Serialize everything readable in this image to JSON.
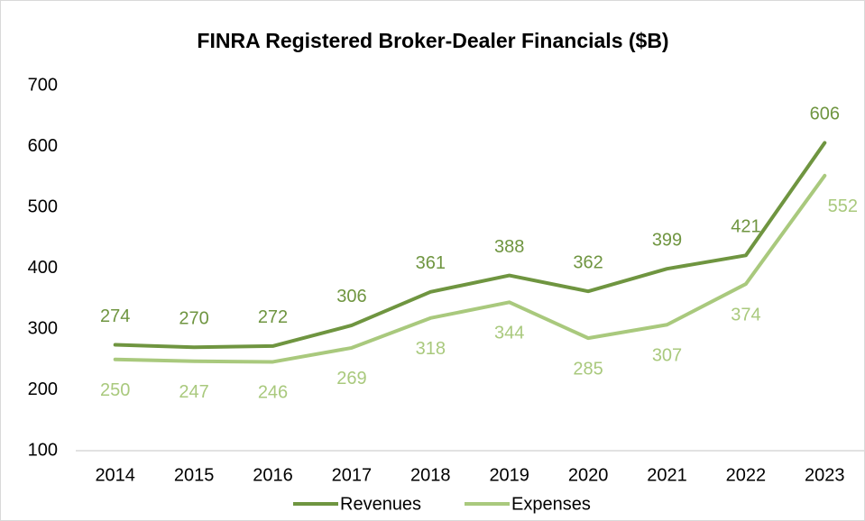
{
  "chart_data": {
    "type": "line",
    "title": "FINRA Registered Broker-Dealer Financials ($B)",
    "categories": [
      "2014",
      "2015",
      "2016",
      "2017",
      "2018",
      "2019",
      "2020",
      "2021",
      "2022",
      "2023"
    ],
    "series": [
      {
        "name": "Revenues",
        "color": "#6f9540",
        "values": [
          274,
          270,
          272,
          306,
          361,
          388,
          362,
          399,
          421,
          606
        ]
      },
      {
        "name": "Expenses",
        "color": "#a9c97d",
        "values": [
          250,
          247,
          246,
          269,
          318,
          344,
          285,
          307,
          374,
          552
        ]
      }
    ],
    "ylim": [
      100,
      700
    ],
    "yticks": [
      100,
      200,
      300,
      400,
      500,
      600,
      700
    ],
    "grid": false,
    "legend": "bottom"
  }
}
